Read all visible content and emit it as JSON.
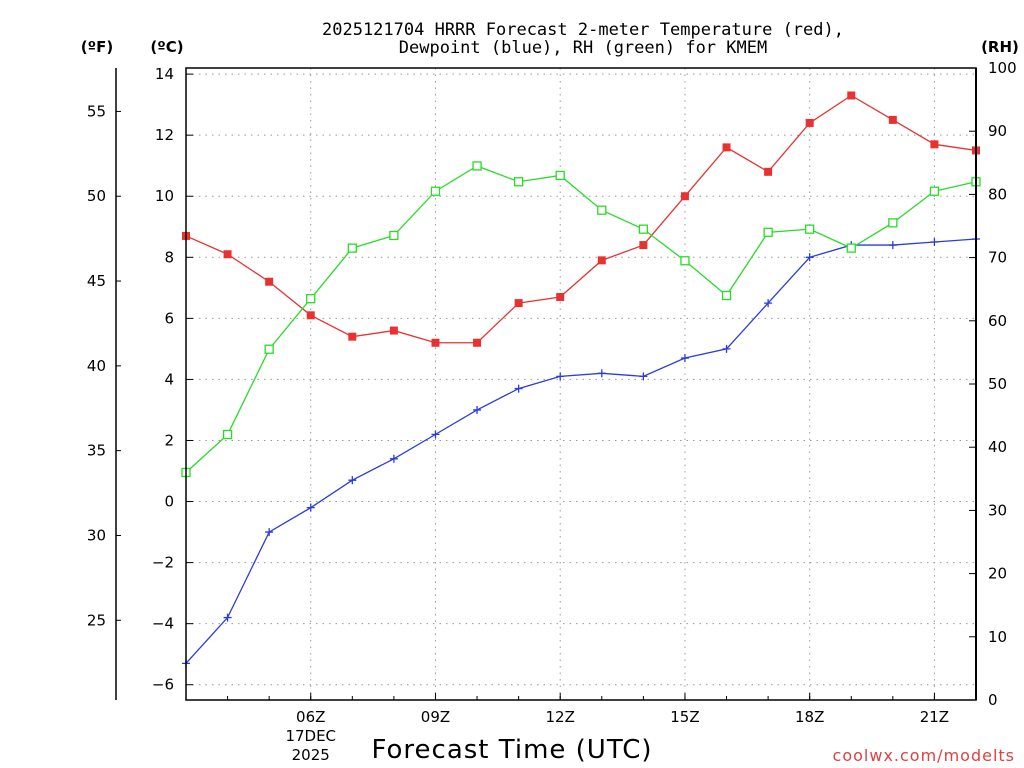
{
  "chart_data": {
    "type": "line",
    "title": [
      "2025121704 HRRR Forecast 2-meter Temperature (red),",
      "Dewpoint (blue), RH (green) for KMEM"
    ],
    "xlabel": "Forecast Time (UTC)",
    "left_unit_f": "(ºF)",
    "left_unit_c": "(ºC)",
    "right_unit": "(RH)",
    "x_hours": [
      3,
      4,
      5,
      6,
      7,
      8,
      9,
      10,
      11,
      12,
      13,
      14,
      15,
      16,
      17,
      18,
      19,
      20,
      21,
      22
    ],
    "x_range": [
      3,
      22
    ],
    "x_ticks": [
      {
        "hour": 6,
        "label": "06Z",
        "date_line1": "17DEC",
        "date_line2": "2025"
      },
      {
        "hour": 9,
        "label": "09Z"
      },
      {
        "hour": 12,
        "label": "12Z"
      },
      {
        "hour": 15,
        "label": "15Z"
      },
      {
        "hour": 18,
        "label": "18Z"
      },
      {
        "hour": 21,
        "label": "21Z"
      }
    ],
    "y_celsius": {
      "range": [
        -6.5,
        14.2
      ],
      "ticks": [
        14,
        12,
        10,
        8,
        6,
        4,
        2,
        0,
        -2,
        -4,
        -6
      ],
      "tick_labels": [
        "14",
        "12",
        "10",
        "8",
        "6",
        "4",
        "2",
        "0",
        "−2",
        "−4",
        "−6"
      ]
    },
    "y_fahrenheit": {
      "ticks": [
        55,
        50,
        45,
        40,
        35,
        30,
        25
      ],
      "tick_labels": [
        "55",
        "50",
        "45",
        "40",
        "35",
        "30",
        "25"
      ]
    },
    "y_rh": {
      "range": [
        0,
        100
      ],
      "ticks": [
        100,
        90,
        80,
        70,
        60,
        50,
        40,
        30,
        20,
        10,
        0
      ],
      "tick_labels": [
        "100",
        "90",
        "80",
        "70",
        "60",
        "50",
        "40",
        "30",
        "20",
        "10",
        "0"
      ]
    },
    "series": [
      {
        "name": "Temperature",
        "axis": "celsius",
        "color": "#e83232",
        "marker": "filled-square",
        "values": [
          8.7,
          8.1,
          7.2,
          6.1,
          5.4,
          5.6,
          5.2,
          5.2,
          6.5,
          6.7,
          7.9,
          8.4,
          10.0,
          11.6,
          10.8,
          12.4,
          13.3,
          12.5,
          11.7,
          11.5
        ]
      },
      {
        "name": "Dewpoint",
        "axis": "celsius",
        "color": "#2a3cdc",
        "marker": "plus",
        "values": [
          -5.3,
          -3.8,
          -1.0,
          -0.2,
          0.7,
          1.4,
          2.2,
          3.0,
          3.7,
          4.1,
          4.2,
          4.1,
          4.7,
          5.0,
          6.5,
          8.0,
          8.4,
          8.4,
          8.5,
          8.6
        ]
      },
      {
        "name": "RH",
        "axis": "rh",
        "color": "#28dc28",
        "marker": "open-square",
        "values": [
          36,
          42,
          55.5,
          63.5,
          71.5,
          73.5,
          80.5,
          84.5,
          82,
          83,
          77.5,
          74.5,
          69.5,
          64,
          74,
          74.5,
          71.5,
          75.5,
          80.5,
          82
        ]
      }
    ],
    "grid": true,
    "credit": "coolwx.com/modelts"
  }
}
